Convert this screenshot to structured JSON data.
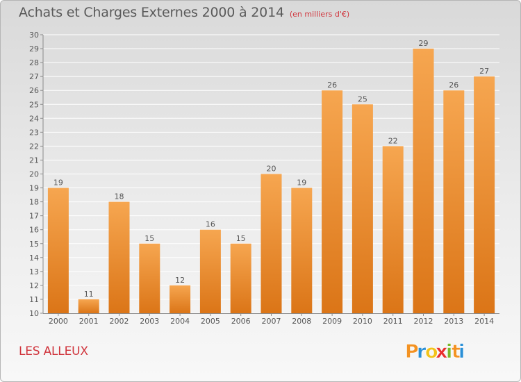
{
  "title": "Achats et Charges Externes 2000 à 2014",
  "unit": "(en milliers d'€)",
  "commune": "LES ALLEUX",
  "logo": {
    "letters": [
      "P",
      "r",
      "o",
      "x",
      "i",
      "t",
      "i"
    ],
    "colors": [
      "#f39222",
      "#2a8fd6",
      "#f2c31b",
      "#e8302f",
      "#79b829",
      "#f39222",
      "#2a8fd6"
    ]
  },
  "colors": {
    "bar_light": "#f6a650",
    "bar_dark": "#db7517",
    "text": "#5a5a5a",
    "accent": "#d0343c"
  },
  "chart_data": {
    "type": "bar",
    "categories": [
      "2000",
      "2001",
      "2002",
      "2003",
      "2004",
      "2005",
      "2006",
      "2007",
      "2008",
      "2009",
      "2010",
      "2011",
      "2012",
      "2013",
      "2014"
    ],
    "values": [
      19,
      11,
      18,
      15,
      12,
      16,
      15,
      20,
      19,
      26,
      25,
      22,
      29,
      26,
      27
    ],
    "ylim": [
      10,
      30
    ],
    "yticks": [
      10,
      11,
      12,
      13,
      14,
      15,
      16,
      17,
      18,
      19,
      20,
      21,
      22,
      23,
      24,
      25,
      26,
      27,
      28,
      29,
      30
    ],
    "grid": true,
    "title": "Achats et Charges Externes 2000 à 2014",
    "unit": "(en milliers d'€)"
  }
}
